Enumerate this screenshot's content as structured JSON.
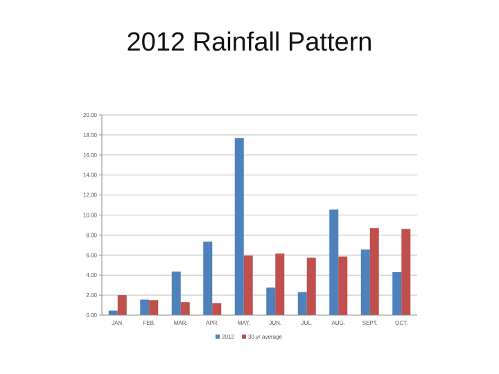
{
  "slide": {
    "title": "2012 Rainfall Pattern"
  },
  "colors": {
    "series_2012": "#4f81bd",
    "series_avg": "#c0504d",
    "grid": "#bfbfbf",
    "axis": "#8c8c8c"
  },
  "chart_data": {
    "type": "bar",
    "title": "",
    "xlabel": "",
    "ylabel": "",
    "ylim": [
      0,
      20
    ],
    "y_ticks": [
      "0.00",
      "2.00",
      "4.00",
      "6.00",
      "8.00",
      "10.00",
      "12.00",
      "14.00",
      "16.00",
      "18.00",
      "20.00"
    ],
    "grid": true,
    "legend_position": "bottom",
    "categories": [
      "JAN.",
      "FEB.",
      "MAR.",
      "APR.",
      "MAY.",
      "JUN.",
      "JUL.",
      "AUG.",
      "SEPT.",
      "OCT."
    ],
    "series": [
      {
        "name": "2012",
        "values": [
          0.45,
          1.55,
          4.35,
          7.35,
          17.7,
          2.75,
          2.3,
          10.55,
          6.55,
          4.3
        ]
      },
      {
        "name": "30 yr average",
        "values": [
          2.0,
          1.5,
          1.3,
          1.2,
          5.95,
          6.15,
          5.75,
          5.85,
          8.7,
          8.6
        ]
      }
    ]
  }
}
